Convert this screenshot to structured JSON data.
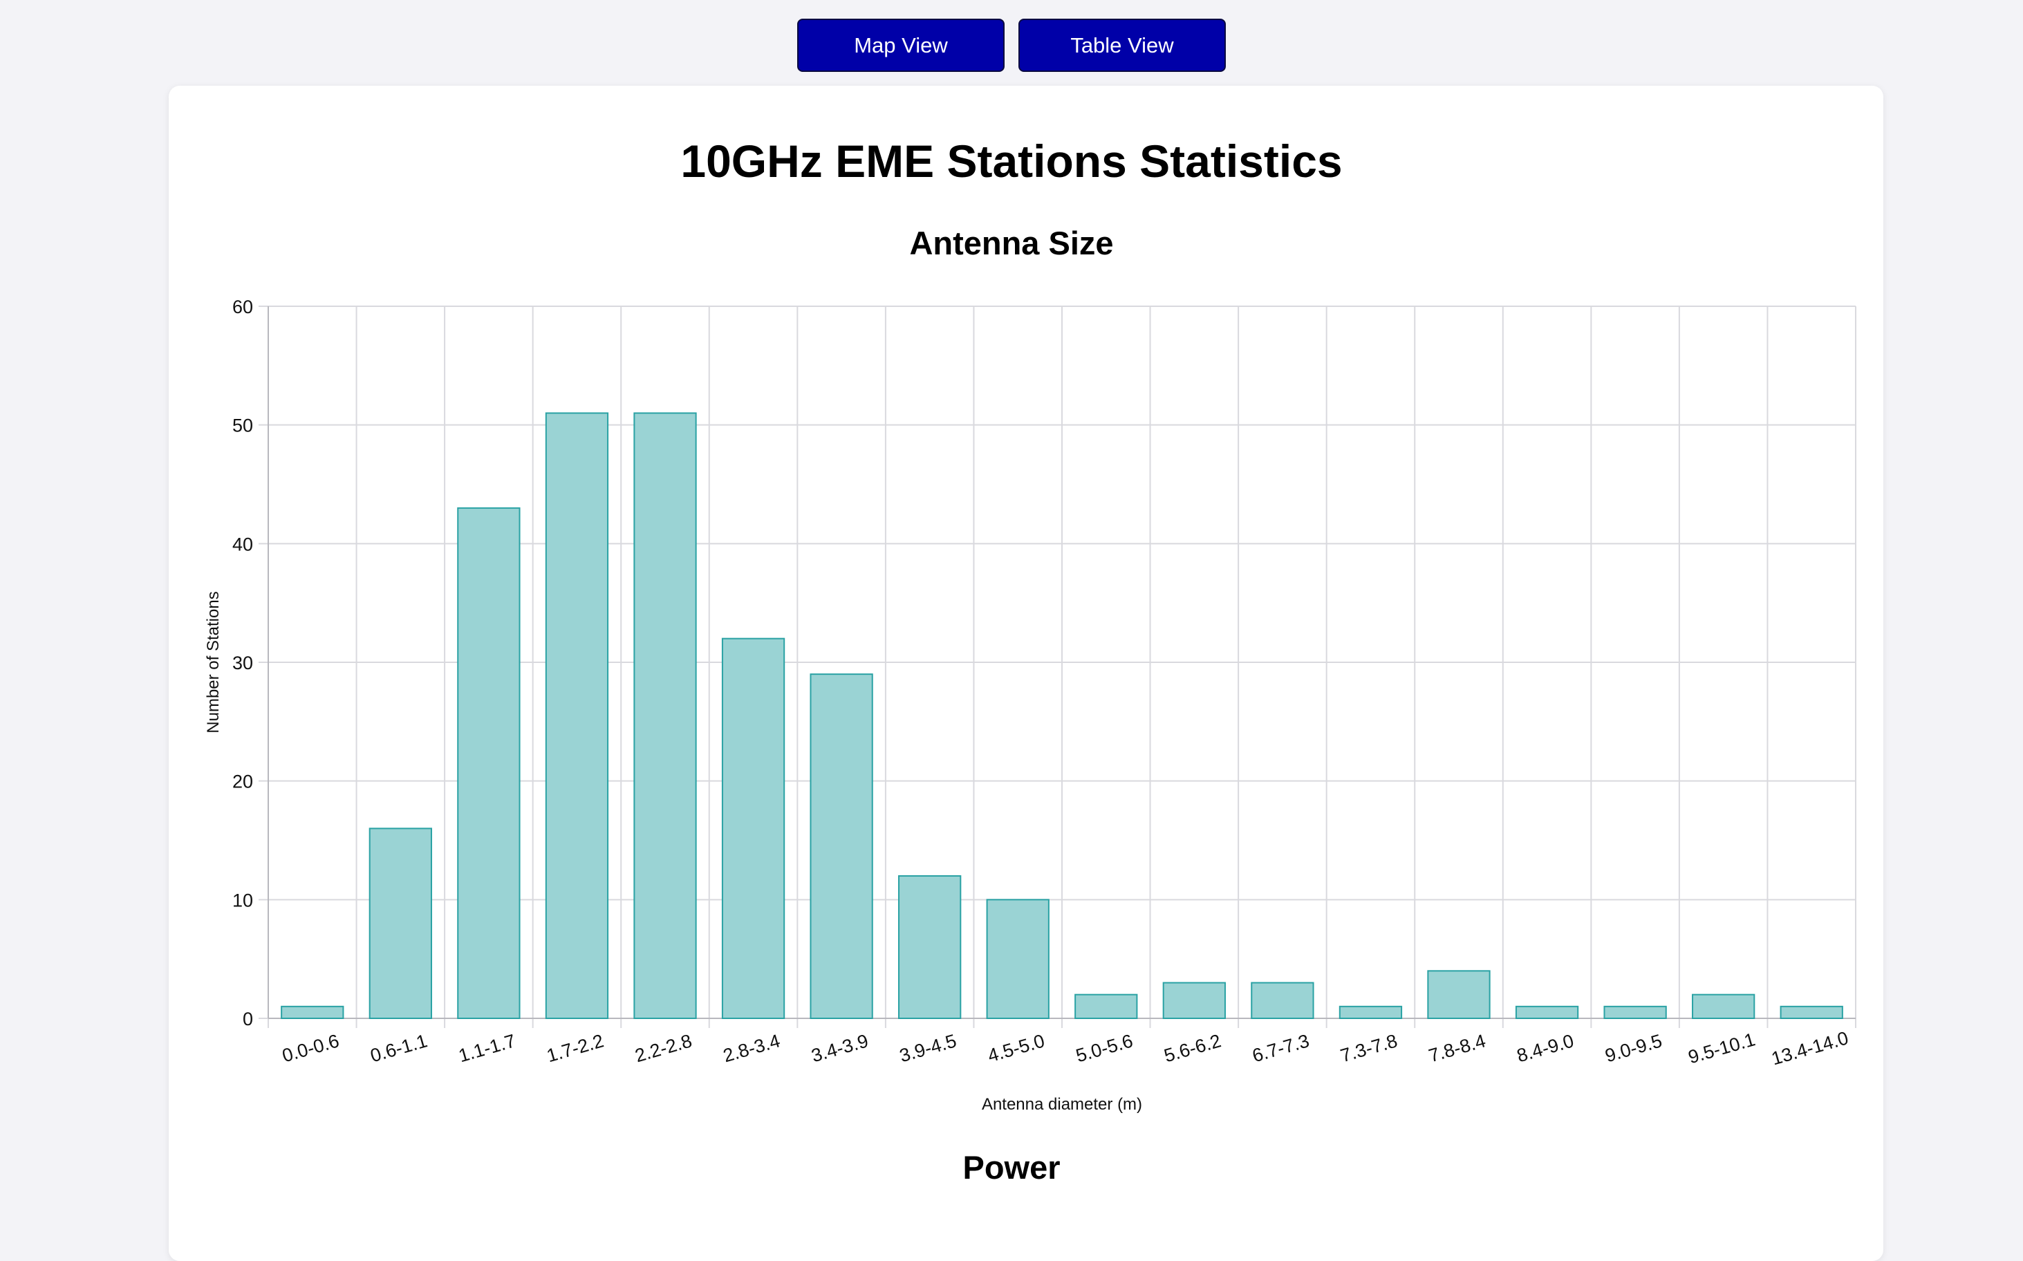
{
  "nav": {
    "map_view_label": "Map View",
    "table_view_label": "Table View",
    "button_color": "#0000a8"
  },
  "page": {
    "title": "10GHz EME Stations Statistics"
  },
  "sections": {
    "antenna_title": "Antenna Size",
    "power_title": "Power"
  },
  "chart_data": {
    "type": "bar",
    "title": "Antenna Size",
    "xlabel": "Antenna diameter (m)",
    "ylabel": "Number of Stations",
    "ylim": [
      0,
      60
    ],
    "yticks": [
      0,
      10,
      20,
      30,
      40,
      50,
      60
    ],
    "grid": true,
    "bar_fill": "#9ad3d4",
    "bar_stroke": "#2aa2a4",
    "categories": [
      "0.0-0.6",
      "0.6-1.1",
      "1.1-1.7",
      "1.7-2.2",
      "2.2-2.8",
      "2.8-3.4",
      "3.4-3.9",
      "3.9-4.5",
      "4.5-5.0",
      "5.0-5.6",
      "5.6-6.2",
      "6.7-7.3",
      "7.3-7.8",
      "7.8-8.4",
      "8.4-9.0",
      "9.0-9.5",
      "9.5-10.1",
      "13.4-14.0"
    ],
    "values": [
      1,
      16,
      43,
      51,
      51,
      32,
      29,
      12,
      10,
      2,
      3,
      3,
      1,
      4,
      1,
      1,
      2,
      1
    ]
  }
}
